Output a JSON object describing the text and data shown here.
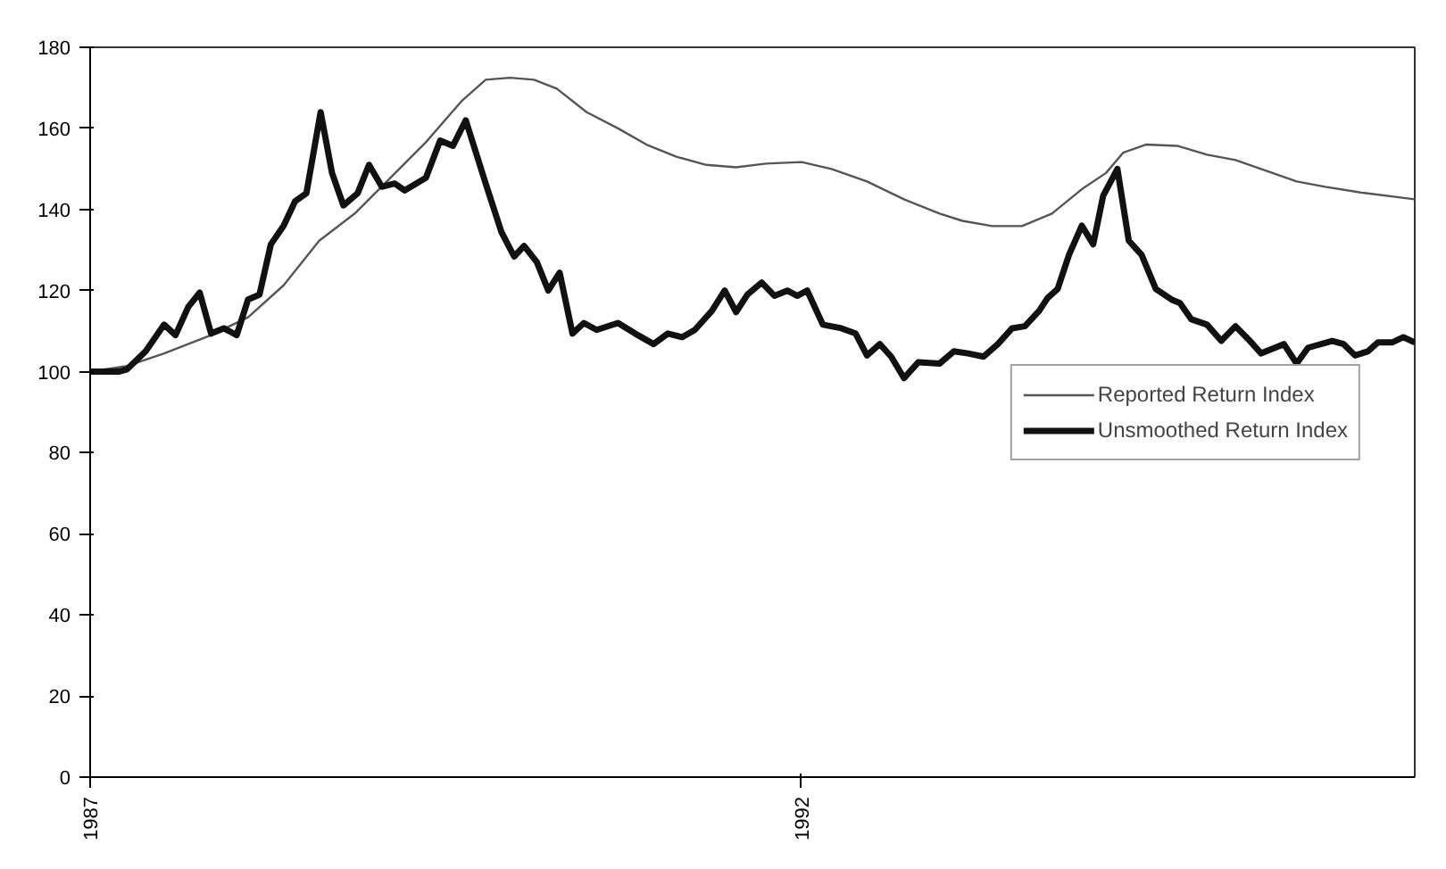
{
  "chart_data": {
    "type": "line",
    "xlim": [
      1987,
      1996.31
    ],
    "xticks": [
      1987,
      1992
    ],
    "ylim": [
      0,
      180
    ],
    "yticks": [
      0,
      20,
      40,
      60,
      80,
      100,
      120,
      140,
      160,
      180
    ],
    "grid": false,
    "legend": "right",
    "marker": "none",
    "line_style": "solid",
    "series": [
      {
        "name": "Reported Return Index",
        "color": "#555555",
        "x": [
          1987.0,
          1987.26,
          1987.52,
          1987.85,
          1988.11,
          1988.36,
          1988.61,
          1988.86,
          1989.11,
          1989.36,
          1989.61,
          1989.78,
          1989.95,
          1990.12,
          1990.28,
          1990.49,
          1990.71,
          1990.91,
          1991.12,
          1991.33,
          1991.54,
          1991.75,
          1992.0,
          1992.21,
          1992.46,
          1992.72,
          1992.97,
          1993.13,
          1993.34,
          1993.55,
          1993.76,
          1993.97,
          1994.14,
          1994.26,
          1994.42,
          1994.64,
          1994.85,
          1995.05,
          1995.27,
          1995.48,
          1995.68,
          1995.93,
          1996.31
        ],
        "values": [
          100,
          101.4,
          104.5,
          109,
          113.4,
          121.3,
          132.3,
          139,
          147.8,
          156.6,
          166.7,
          172,
          172.5,
          172,
          169.8,
          164,
          160,
          156,
          153,
          151,
          150.4,
          151.3,
          151.7,
          150,
          146.9,
          142.5,
          139,
          137.2,
          135.9,
          135.9,
          139,
          145,
          149,
          154,
          156,
          155.7,
          153.5,
          152.2,
          149.5,
          146.9,
          145.6,
          144.2,
          142.5
        ]
      },
      {
        "name": "Unsmoothed Return Index",
        "color": "#111111",
        "x": [
          1987.0,
          1987.2,
          1987.26,
          1987.39,
          1987.52,
          1987.6,
          1987.69,
          1987.77,
          1987.85,
          1987.94,
          1988.03,
          1988.11,
          1988.19,
          1988.27,
          1988.36,
          1988.44,
          1988.52,
          1988.62,
          1988.7,
          1988.78,
          1988.88,
          1988.96,
          1989.05,
          1989.14,
          1989.21,
          1989.36,
          1989.46,
          1989.55,
          1989.64,
          1989.78,
          1989.89,
          1989.98,
          1990.05,
          1990.14,
          1990.22,
          1990.3,
          1990.39,
          1990.47,
          1990.56,
          1990.71,
          1990.83,
          1990.96,
          1991.06,
          1991.16,
          1991.25,
          1991.37,
          1991.46,
          1991.54,
          1991.62,
          1991.72,
          1991.81,
          1991.9,
          1991.97,
          1992.04,
          1992.15,
          1992.28,
          1992.38,
          1992.46,
          1992.55,
          1992.63,
          1992.72,
          1992.82,
          1992.97,
          1993.07,
          1993.17,
          1993.28,
          1993.38,
          1993.48,
          1993.57,
          1993.67,
          1993.73,
          1993.8,
          1993.88,
          1993.97,
          1994.05,
          1994.12,
          1994.22,
          1994.3,
          1994.39,
          1994.49,
          1994.6,
          1994.66,
          1994.74,
          1994.85,
          1994.95,
          1995.05,
          1995.14,
          1995.23,
          1995.39,
          1995.48,
          1995.56,
          1995.73,
          1995.81,
          1995.89,
          1995.98,
          1996.05,
          1996.15,
          1996.23,
          1996.31
        ],
        "values": [
          100,
          100,
          100.6,
          105,
          111.6,
          109,
          116,
          119.5,
          109.4,
          110.7,
          109,
          117.8,
          119,
          131.4,
          136,
          142,
          144,
          164,
          149,
          141,
          144,
          151,
          145.6,
          146.4,
          144.7,
          147.8,
          157,
          155.7,
          162,
          146.4,
          134.5,
          128.4,
          131,
          127,
          120,
          124.4,
          109.4,
          112,
          110.3,
          112,
          109.4,
          106.8,
          109.4,
          108.5,
          110.3,
          115,
          120,
          114.7,
          119,
          122,
          118.7,
          120,
          118.7,
          120,
          111.6,
          110.7,
          109.4,
          104,
          106.8,
          103.7,
          98.4,
          102.3,
          102,
          105,
          104.5,
          103.7,
          106.8,
          110.7,
          111.2,
          115,
          118.2,
          120.4,
          128.8,
          136,
          131.4,
          143.4,
          150,
          132.3,
          128.8,
          120.4,
          117.8,
          116.9,
          112.9,
          111.6,
          107.6,
          111.2,
          108,
          104.5,
          106.8,
          102,
          105.9,
          107.6,
          106.8,
          104,
          105,
          107.2,
          107.2,
          108.5,
          107.2
        ]
      }
    ]
  }
}
